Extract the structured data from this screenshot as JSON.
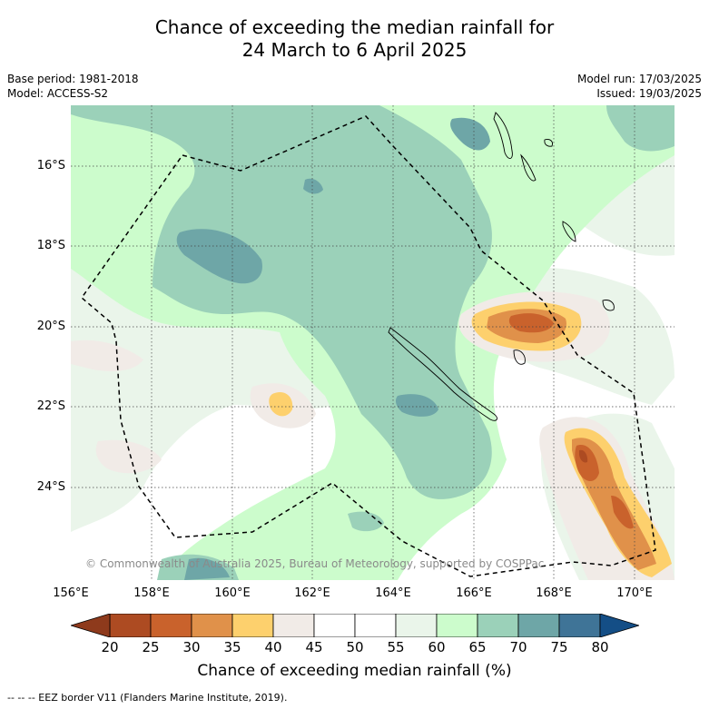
{
  "title_line1": "Chance of exceeding the median rainfall for",
  "title_line2": "24 March to 6 April 2025",
  "base_period": "Base period: 1981-2018",
  "model": "Model: ACCESS-S2",
  "model_run": "Model run: 17/03/2025",
  "issued": "Issued: 19/03/2025",
  "lat_labels": [
    "16°S",
    "18°S",
    "20°S",
    "22°S",
    "24°S"
  ],
  "lon_labels": [
    "156°E",
    "158°E",
    "160°E",
    "162°E",
    "164°E",
    "166°E",
    "168°E",
    "170°E"
  ],
  "credit": "© Commonwealth of Australia 2025, Bureau of Meteorology, supported by COSPPac",
  "colorbar": {
    "ticks": [
      "20",
      "25",
      "30",
      "35",
      "40",
      "45",
      "50",
      "55",
      "60",
      "65",
      "70",
      "75",
      "80"
    ],
    "colors": [
      "#ad4b22",
      "#c9622c",
      "#e0914a",
      "#fdd06d",
      "#f1ebe7",
      "#ffffff",
      "#ffffff",
      "#eaf5ea",
      "#ccfccc",
      "#9bd1b9",
      "#6ea6a7",
      "#3f7497"
    ],
    "below_color": "#8e3a1c",
    "above_color": "#144e86",
    "label": "Chance of exceeding median rainfall (%)"
  },
  "footnote": "--  --  -- EEZ border V11 (Flanders Marine Institute, 2019)."
}
